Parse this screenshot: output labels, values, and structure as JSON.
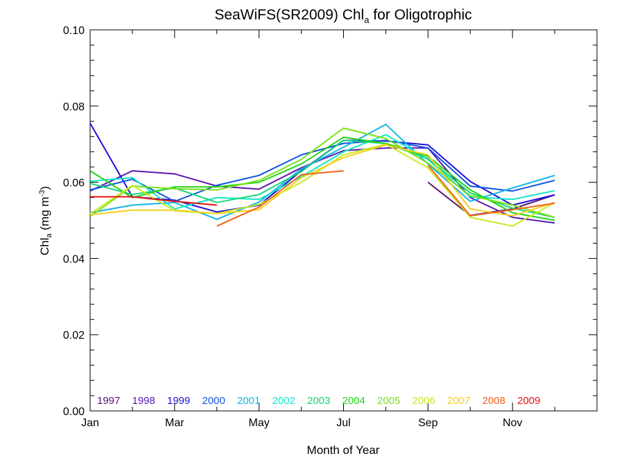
{
  "chart_data": {
    "type": "line",
    "title": {
      "main": "SeaWiFS(SR2009) Chl",
      "sub": "a",
      "tail": " for Oligotrophic"
    },
    "xlabel": "Month of Year",
    "ylabel": {
      "main": "Chl",
      "sub": "a",
      "unit_open": " (mg m",
      "unit_sup": "-3",
      "unit_close": ")"
    },
    "x_tick_values": [
      1,
      3,
      5,
      7,
      9,
      11
    ],
    "x_tick_labels": [
      "Jan",
      "Mar",
      "May",
      "Jul",
      "Sep",
      "Nov"
    ],
    "y_tick_values": [
      0,
      0.02,
      0.04,
      0.06,
      0.08,
      0.1
    ],
    "y_tick_labels": [
      "0.00",
      "0.02",
      "0.04",
      "0.06",
      "0.08",
      "0.10"
    ],
    "xlim": [
      1,
      13
    ],
    "ylim": [
      0,
      0.1
    ],
    "grid": false,
    "legend_position": "bottom-inside",
    "x": [
      1,
      2,
      3,
      4,
      5,
      6,
      7,
      8,
      9,
      10,
      11,
      12
    ],
    "series": [
      {
        "name": "1997",
        "color": "#5a0f72",
        "values": [
          null,
          null,
          null,
          null,
          null,
          null,
          null,
          null,
          0.06,
          0.0513,
          0.053,
          0.0567
        ]
      },
      {
        "name": "1998",
        "color": "#5a18b5",
        "values": [
          0.0577,
          0.063,
          0.0622,
          0.059,
          0.0582,
          0.0638,
          0.0683,
          0.069,
          0.069,
          0.056,
          0.0508,
          0.0493
        ]
      },
      {
        "name": "1999",
        "color": "#1e10d8",
        "values": [
          0.0755,
          0.0562,
          0.0553,
          0.0522,
          0.054,
          0.063,
          0.071,
          0.0708,
          0.0698,
          0.0602,
          0.054,
          0.0567
        ]
      },
      {
        "name": "2000",
        "color": "#0f55e0",
        "values": [
          0.058,
          0.0608,
          0.055,
          0.0592,
          0.0618,
          0.0672,
          0.0702,
          0.071,
          0.069,
          0.059,
          0.0577,
          0.0605
        ]
      },
      {
        "name": "2001",
        "color": "#12b4e8",
        "values": [
          0.052,
          0.054,
          0.0547,
          0.0503,
          0.0548,
          0.0635,
          0.0692,
          0.0752,
          0.0648,
          0.055,
          0.0585,
          0.0618
        ]
      },
      {
        "name": "2002",
        "color": "#12e6c8",
        "values": [
          0.0603,
          0.0612,
          0.053,
          0.056,
          0.0555,
          0.0615,
          0.068,
          0.0725,
          0.066,
          0.0562,
          0.0555,
          0.0578
        ]
      },
      {
        "name": "2003",
        "color": "#12d878",
        "values": [
          0.0597,
          0.0568,
          0.0585,
          0.0547,
          0.0568,
          0.0628,
          0.071,
          0.0702,
          0.0662,
          0.0572,
          0.0532,
          0.0508
        ]
      },
      {
        "name": "2004",
        "color": "#22d418",
        "values": [
          0.063,
          0.056,
          0.0588,
          0.0588,
          0.06,
          0.0648,
          0.0718,
          0.0702,
          0.0668,
          0.058,
          0.052,
          0.05
        ]
      },
      {
        "name": "2005",
        "color": "#7ae21a",
        "values": [
          0.051,
          0.059,
          0.0583,
          0.058,
          0.0605,
          0.066,
          0.0742,
          0.0715,
          0.065,
          0.0565,
          0.054,
          0.0508
        ]
      },
      {
        "name": "2006",
        "color": "#c8ea22",
        "values": [
          0.0517,
          0.0592,
          0.0525,
          0.0518,
          0.0542,
          0.06,
          0.0672,
          0.07,
          0.0638,
          0.0508,
          0.0485,
          0.0547
        ]
      },
      {
        "name": "2007",
        "color": "#f5d01a",
        "values": [
          0.0515,
          0.0527,
          0.0527,
          0.0518,
          0.0528,
          0.0612,
          0.0665,
          0.0698,
          0.0672,
          0.053,
          0.0512,
          0.0547
        ]
      },
      {
        "name": "2008",
        "color": "#f0641a",
        "values": [
          null,
          null,
          null,
          0.0485,
          0.0535,
          0.062,
          0.063,
          null,
          0.0645,
          0.0512,
          0.0528,
          0.0545
        ]
      },
      {
        "name": "2009",
        "color": "#e81212",
        "values": [
          0.0562,
          0.0562,
          0.055,
          0.054,
          null,
          null,
          null,
          null,
          null,
          null,
          null,
          null
        ]
      }
    ]
  }
}
